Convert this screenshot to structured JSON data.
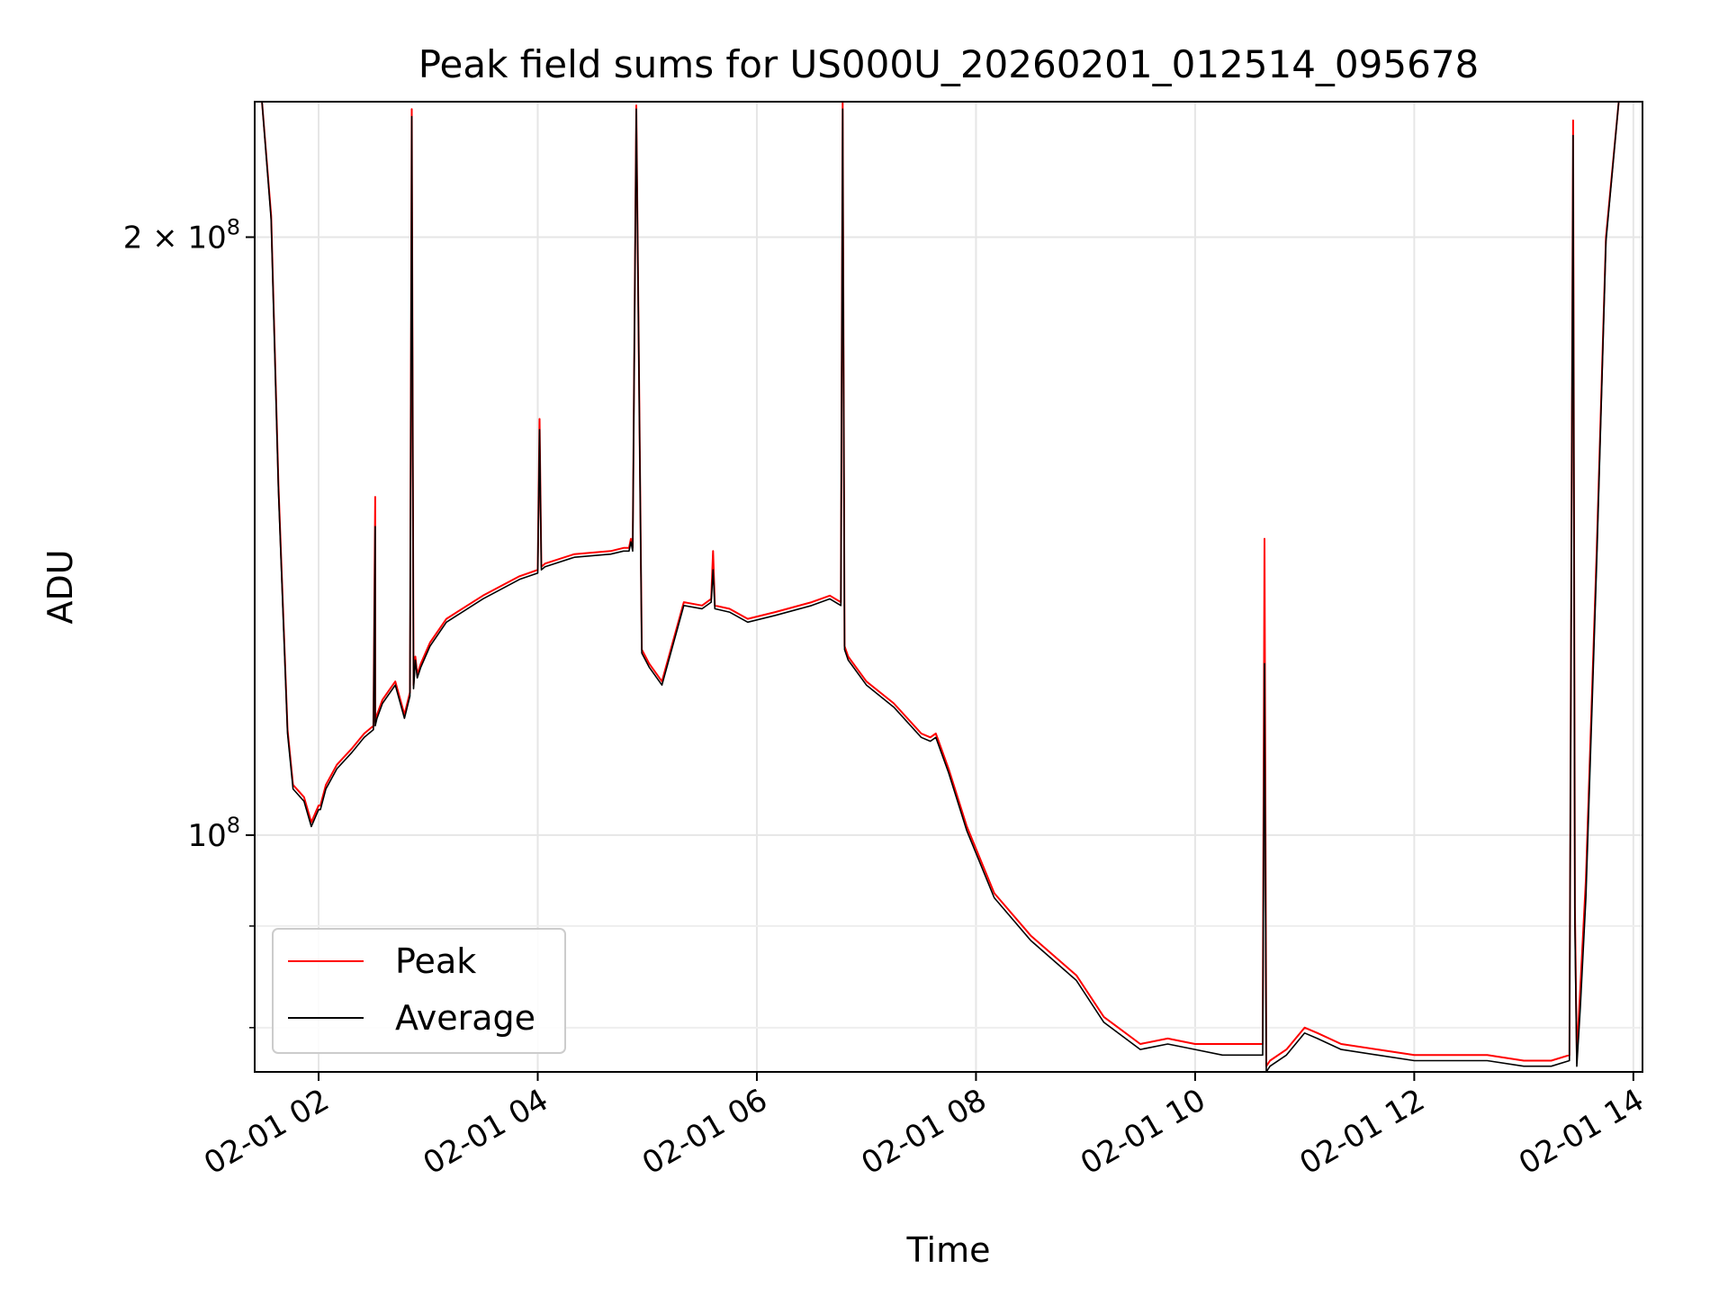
{
  "chart_data": {
    "type": "line",
    "title": "Peak field sums for US000U_20260201_012514_095678",
    "xlabel": "Time",
    "ylabel": "ADU",
    "y_scale": "log",
    "xlim": [
      "2026-02-01 01:25",
      "2026-02-01 14:05"
    ],
    "ylim": [
      76000000,
      234000000
    ],
    "grid": true,
    "legend": "lower-left",
    "x_ticks": [
      "02-01 02",
      "02-01 04",
      "02-01 06",
      "02-01 08",
      "02-01 10",
      "02-01 12",
      "02-01 14"
    ],
    "y_tick_labels": [
      {
        "value": 200000000,
        "mantissa": "2",
        "times": "×",
        "base": "10",
        "exponent": "8"
      },
      {
        "value": 100000000,
        "mantissa": "",
        "times": "",
        "base": "10",
        "exponent": "8"
      }
    ],
    "y_minor_ticks": [
      80000000,
      90000000
    ],
    "series": [
      {
        "name": "Peak",
        "color": "#ff0000",
        "x": [
          "01:25",
          "01:29",
          "01:34",
          "01:38",
          "01:43",
          "01:46",
          "01:52",
          "01:56",
          "02:00",
          "02:01",
          "02:04",
          "02:10",
          "02:18",
          "02:25",
          "02:30",
          "02:31",
          "02:31",
          "02:32",
          "02:35",
          "02:42",
          "02:47",
          "02:50",
          "02:51",
          "02:52",
          "02:53",
          "02:54",
          "02:56",
          "03:01",
          "03:10",
          "03:30",
          "03:50",
          "04:00",
          "04:01",
          "04:02",
          "04:04",
          "04:20",
          "04:40",
          "04:47",
          "04:50",
          "04:51",
          "04:52",
          "04:54",
          "04:57",
          "05:01",
          "05:08",
          "05:20",
          "05:30",
          "05:35",
          "05:36",
          "05:37",
          "05:45",
          "05:55",
          "06:10",
          "06:30",
          "06:40",
          "06:46",
          "06:47",
          "06:48",
          "06:50",
          "07:00",
          "07:15",
          "07:30",
          "07:35",
          "07:38",
          "07:45",
          "07:55",
          "08:10",
          "08:30",
          "08:55",
          "09:10",
          "09:30",
          "09:45",
          "10:00",
          "10:15",
          "10:30",
          "10:37",
          "10:38",
          "10:39",
          "10:41",
          "10:50",
          "11:00",
          "11:07",
          "11:20",
          "11:40",
          "12:00",
          "12:20",
          "12:40",
          "13:00",
          "13:15",
          "13:25",
          "13:27",
          "13:28",
          "13:29",
          "13:31",
          "13:34",
          "13:40",
          "13:45",
          "13:52",
          "14:00"
        ],
        "y": [
          234000000,
          234000000,
          205000000,
          150000000,
          113000000,
          106000000,
          104500000,
          101500000,
          103500000,
          103500000,
          106000000,
          108500000,
          110500000,
          112500000,
          113500000,
          148000000,
          114000000,
          115000000,
          117000000,
          119500000,
          115000000,
          118000000,
          232000000,
          119000000,
          123000000,
          120500000,
          122000000,
          125000000,
          128500000,
          132000000,
          135000000,
          136000000,
          162000000,
          136500000,
          137000000,
          138500000,
          139000000,
          139500000,
          139500000,
          141000000,
          139500000,
          233000000,
          124000000,
          122000000,
          119500000,
          131000000,
          130500000,
          131500000,
          139000000,
          130500000,
          130000000,
          128500000,
          129500000,
          131000000,
          132000000,
          131000000,
          234000000,
          124500000,
          123000000,
          119500000,
          116500000,
          112500000,
          112000000,
          112500000,
          108000000,
          101000000,
          93500000,
          89000000,
          85000000,
          81000000,
          78500000,
          79000000,
          78500000,
          78500000,
          78500000,
          78500000,
          141000000,
          76500000,
          77000000,
          78000000,
          80000000,
          79500000,
          78500000,
          78000000,
          77500000,
          77500000,
          77500000,
          77000000,
          77000000,
          77500000,
          229000000,
          92000000,
          77500000,
          84000000,
          95000000,
          140000000,
          200000000,
          234000000,
          234000000
        ]
      },
      {
        "name": "Average",
        "color": "#000000",
        "x": [
          "01:25",
          "01:29",
          "01:34",
          "01:38",
          "01:43",
          "01:46",
          "01:52",
          "01:56",
          "02:00",
          "02:01",
          "02:04",
          "02:10",
          "02:18",
          "02:25",
          "02:30",
          "02:31",
          "02:31",
          "02:32",
          "02:35",
          "02:42",
          "02:47",
          "02:50",
          "02:51",
          "02:52",
          "02:53",
          "02:54",
          "02:56",
          "03:01",
          "03:10",
          "03:30",
          "03:50",
          "04:00",
          "04:01",
          "04:02",
          "04:04",
          "04:20",
          "04:40",
          "04:47",
          "04:50",
          "04:51",
          "04:52",
          "04:54",
          "04:57",
          "05:01",
          "05:08",
          "05:20",
          "05:30",
          "05:35",
          "05:36",
          "05:37",
          "05:45",
          "05:55",
          "06:10",
          "06:30",
          "06:40",
          "06:46",
          "06:47",
          "06:48",
          "06:50",
          "07:00",
          "07:15",
          "07:30",
          "07:35",
          "07:38",
          "07:45",
          "07:55",
          "08:10",
          "08:30",
          "08:55",
          "09:10",
          "09:30",
          "09:45",
          "10:00",
          "10:15",
          "10:30",
          "10:37",
          "10:38",
          "10:39",
          "10:41",
          "10:50",
          "11:00",
          "11:07",
          "11:20",
          "11:40",
          "12:00",
          "12:20",
          "12:40",
          "13:00",
          "13:15",
          "13:25",
          "13:27",
          "13:28",
          "13:29",
          "13:31",
          "13:34",
          "13:40",
          "13:45",
          "13:52",
          "14:00"
        ],
        "y": [
          234000000,
          234000000,
          204000000,
          149000000,
          112500000,
          105500000,
          104000000,
          101000000,
          103000000,
          103000000,
          105500000,
          108000000,
          110000000,
          112000000,
          113000000,
          143000000,
          113500000,
          114500000,
          116500000,
          119000000,
          114500000,
          117500000,
          230000000,
          118500000,
          122500000,
          120000000,
          121500000,
          124500000,
          128000000,
          131500000,
          134500000,
          135500000,
          160000000,
          136000000,
          136500000,
          138000000,
          138500000,
          139000000,
          139000000,
          140500000,
          139000000,
          232000000,
          123500000,
          121500000,
          119000000,
          130500000,
          130000000,
          131000000,
          136000000,
          130000000,
          129500000,
          128000000,
          129000000,
          130500000,
          131500000,
          130500000,
          232000000,
          124000000,
          122500000,
          119000000,
          116000000,
          112000000,
          111500000,
          112000000,
          107500000,
          100500000,
          93000000,
          88500000,
          84500000,
          80500000,
          78000000,
          78500000,
          78000000,
          77500000,
          77500000,
          77500000,
          122000000,
          76000000,
          76500000,
          77500000,
          79500000,
          79000000,
          78000000,
          77500000,
          77000000,
          77000000,
          77000000,
          76500000,
          76500000,
          77000000,
          225000000,
          90000000,
          76500000,
          82000000,
          93000000,
          138000000,
          199000000,
          234000000,
          234000000
        ]
      }
    ]
  }
}
